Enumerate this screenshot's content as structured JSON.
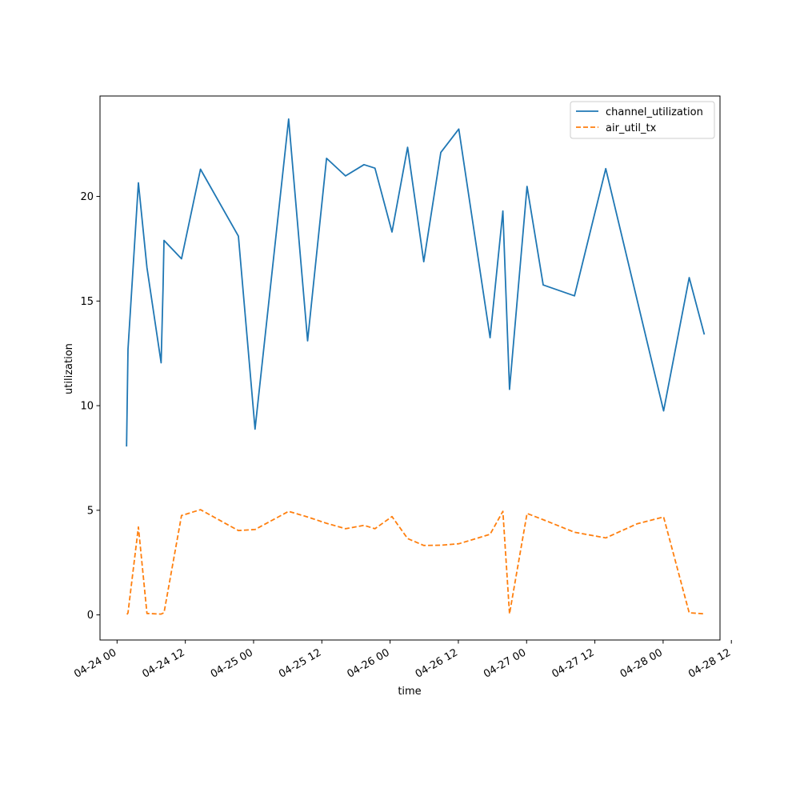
{
  "chart_data": {
    "type": "line",
    "title": "",
    "xlabel": "time",
    "ylabel": "utilization",
    "x_type": "datetime",
    "xlim": [
      "2024-04-23T21:00",
      "2024-04-28T10:00"
    ],
    "ylim": [
      -1.2,
      24.8
    ],
    "x_ticks": [
      "2024-04-24T00:00",
      "2024-04-24T12:00",
      "2024-04-25T00:00",
      "2024-04-25T12:00",
      "2024-04-26T00:00",
      "2024-04-26T12:00",
      "2024-04-27T00:00",
      "2024-04-27T12:00",
      "2024-04-28T00:00",
      "2024-04-28T12:00"
    ],
    "x_tick_labels": [
      "04-24 00",
      "04-24 12",
      "04-25 00",
      "04-25 12",
      "04-26 00",
      "04-26 12",
      "04-27 00",
      "04-27 12",
      "04-28 00",
      "04-28 12"
    ],
    "y_ticks": [
      0,
      5,
      10,
      15,
      20
    ],
    "y_tick_labels": [
      "0",
      "5",
      "10",
      "15",
      "20"
    ],
    "grid": false,
    "legend": "top-right",
    "series": [
      {
        "name": "channel_utilization",
        "color": "#1f77b4",
        "dash": "solid",
        "points": [
          [
            "2024-04-24T01:40",
            8.05
          ],
          [
            "2024-04-24T01:55",
            12.7
          ],
          [
            "2024-04-24T03:45",
            20.65
          ],
          [
            "2024-04-24T05:15",
            16.6
          ],
          [
            "2024-04-24T07:45",
            12.05
          ],
          [
            "2024-04-24T08:05",
            15.6
          ],
          [
            "2024-04-24T08:15",
            17.9
          ],
          [
            "2024-04-24T11:20",
            17.02
          ],
          [
            "2024-04-24T14:40",
            21.3
          ],
          [
            "2024-04-24T21:20",
            18.1
          ],
          [
            "2024-04-25T00:15",
            8.88
          ],
          [
            "2024-04-25T06:10",
            23.7
          ],
          [
            "2024-04-25T09:30",
            13.1
          ],
          [
            "2024-04-25T12:50",
            21.82
          ],
          [
            "2024-04-25T16:10",
            20.98
          ],
          [
            "2024-04-25T19:25",
            21.52
          ],
          [
            "2024-04-25T21:20",
            21.35
          ],
          [
            "2024-04-26T00:20",
            18.3
          ],
          [
            "2024-04-26T03:05",
            22.35
          ],
          [
            "2024-04-26T05:55",
            16.88
          ],
          [
            "2024-04-26T08:55",
            22.1
          ],
          [
            "2024-04-26T12:05",
            23.22
          ],
          [
            "2024-04-26T17:35",
            13.25
          ],
          [
            "2024-04-26T19:50",
            19.3
          ],
          [
            "2024-04-26T21:00",
            10.78
          ],
          [
            "2024-04-27T00:05",
            20.48
          ],
          [
            "2024-04-27T02:55",
            15.77
          ],
          [
            "2024-04-27T08:25",
            15.25
          ],
          [
            "2024-04-27T13:55",
            21.33
          ],
          [
            "2024-04-28T00:05",
            9.75
          ],
          [
            "2024-04-28T04:35",
            16.12
          ],
          [
            "2024-04-28T07:15",
            13.4
          ]
        ]
      },
      {
        "name": "air_util_tx",
        "color": "#ff7f0e",
        "dash": "dashed",
        "points": [
          [
            "2024-04-24T01:45",
            0.02
          ],
          [
            "2024-04-24T01:55",
            0.1
          ],
          [
            "2024-04-24T03:45",
            4.2
          ],
          [
            "2024-04-24T05:15",
            0.07
          ],
          [
            "2024-04-24T07:45",
            0.04
          ],
          [
            "2024-04-24T08:15",
            0.1
          ],
          [
            "2024-04-24T11:20",
            4.75
          ],
          [
            "2024-04-24T14:40",
            5.03
          ],
          [
            "2024-04-24T21:20",
            4.03
          ],
          [
            "2024-04-25T00:15",
            4.08
          ],
          [
            "2024-04-25T06:10",
            4.95
          ],
          [
            "2024-04-25T09:30",
            4.68
          ],
          [
            "2024-04-25T12:50",
            4.38
          ],
          [
            "2024-04-25T16:10",
            4.12
          ],
          [
            "2024-04-25T19:25",
            4.28
          ],
          [
            "2024-04-25T21:20",
            4.12
          ],
          [
            "2024-04-26T00:20",
            4.7
          ],
          [
            "2024-04-26T03:05",
            3.65
          ],
          [
            "2024-04-26T05:55",
            3.32
          ],
          [
            "2024-04-26T08:55",
            3.33
          ],
          [
            "2024-04-26T12:05",
            3.4
          ],
          [
            "2024-04-26T17:35",
            3.85
          ],
          [
            "2024-04-26T19:50",
            4.95
          ],
          [
            "2024-04-26T21:00",
            0.05
          ],
          [
            "2024-04-27T00:05",
            4.85
          ],
          [
            "2024-04-27T02:55",
            4.55
          ],
          [
            "2024-04-27T08:25",
            3.95
          ],
          [
            "2024-04-27T13:55",
            3.68
          ],
          [
            "2024-04-27T19:25",
            4.35
          ],
          [
            "2024-04-28T00:05",
            4.68
          ],
          [
            "2024-04-28T04:35",
            0.1
          ],
          [
            "2024-04-28T07:15",
            0.05
          ]
        ]
      }
    ]
  }
}
